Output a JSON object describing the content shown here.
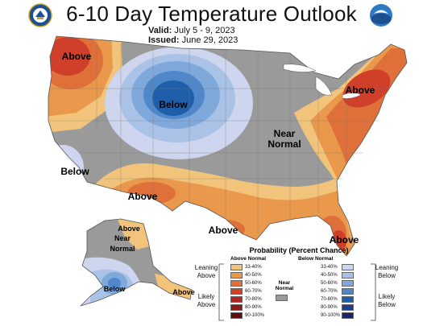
{
  "header": {
    "title": "6-10 Day Temperature Outlook",
    "valid_label": "Valid:",
    "valid_value": "July 5 - 9, 2023",
    "issued_label": "Issued:",
    "issued_value": "June 29, 2023",
    "left_logo": "commerce-seal-icon",
    "right_logo": "noaa-logo-icon"
  },
  "map_labels": {
    "northwest": "Above",
    "north_central": "Below",
    "california": "Below",
    "southwest": "Above",
    "near_normal_center": "Near Normal",
    "northeast": "Above",
    "gulf": "Above",
    "florida": "Above",
    "alaska_north": "Above",
    "alaska_center": "Near Normal",
    "alaska_south": "Below",
    "alaska_east": "Above"
  },
  "legend": {
    "title": "Probability (Percent Chance)",
    "above_header": "Above Normal",
    "below_header": "Below Normal",
    "near_header": "Near Normal",
    "leaning_above": "Leaning Above",
    "likely_above": "Likely Above",
    "leaning_below": "Leaning Below",
    "likely_below": "Likely Below",
    "ranges": [
      "33-40%",
      "40-50%",
      "50-60%",
      "60-70%",
      "70-80%",
      "80-90%",
      "90-100%"
    ],
    "above_colors": [
      "#f2c47b",
      "#e9984c",
      "#e0703a",
      "#cf3f2a",
      "#b02523",
      "#8a1b1b",
      "#5a1010"
    ],
    "below_colors": [
      "#cdd6ee",
      "#a9c2e6",
      "#7fa9db",
      "#4f87c8",
      "#1f5ea8",
      "#1b3f86",
      "#1d2466"
    ],
    "near_color": "#9a9a9a"
  }
}
